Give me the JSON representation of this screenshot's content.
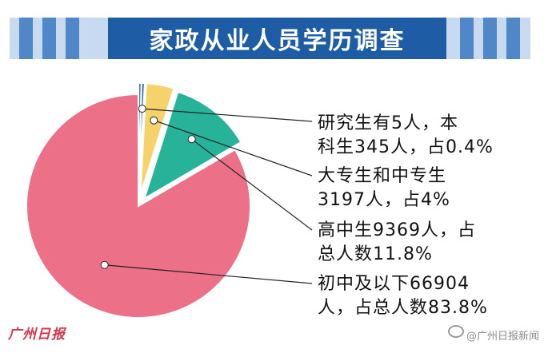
{
  "title": "家政从业人员学历调查",
  "chart_data": {
    "type": "pie",
    "title": "家政从业人员学历调查",
    "slices": [
      {
        "name": "研究生",
        "value": 5,
        "color": "#1f5ca6"
      },
      {
        "name": "本科生",
        "value": 345,
        "percent": 0.4,
        "color": "#1f5ca6"
      },
      {
        "name": "大专生和中专生",
        "value": 3197,
        "percent": 4,
        "color": "#f5d26b"
      },
      {
        "name": "高中生",
        "value": 9369,
        "percent": 11.8,
        "color": "#27b39a"
      },
      {
        "name": "初中及以下",
        "value": 66904,
        "percent": 83.8,
        "color": "#ec7088"
      }
    ],
    "annotations": [
      {
        "lines": [
          "研究生有5人，本",
          "科生345人，占0.4%"
        ]
      },
      {
        "lines": [
          "大专生和中专生",
          "3197人，占4%"
        ]
      },
      {
        "lines": [
          "高中生9369人，占",
          "总人数11.8%"
        ]
      },
      {
        "lines": [
          "初中及以下66904",
          "人，占总人数83.8%"
        ]
      }
    ]
  },
  "watermark_left": "广州日报",
  "watermark_right": "@广州日报新闻"
}
